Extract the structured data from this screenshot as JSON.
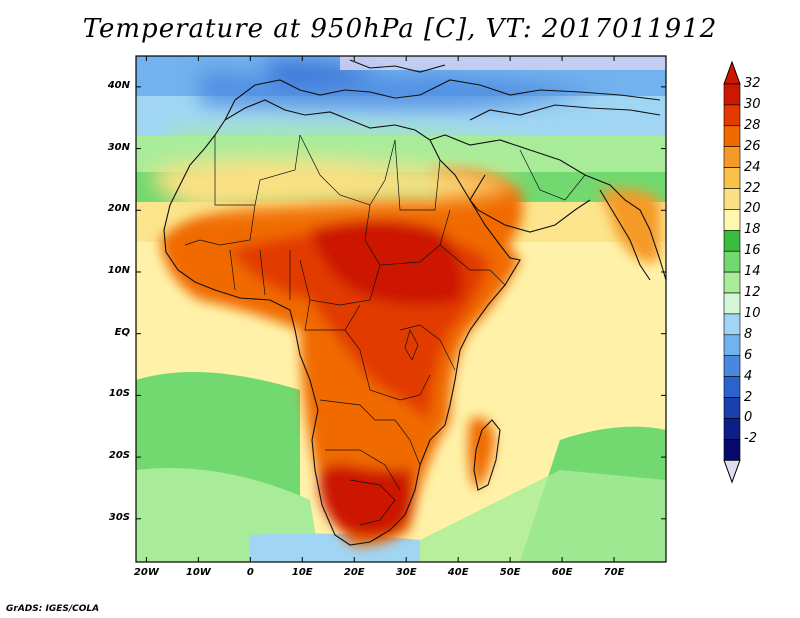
{
  "title": "Temperature at 950hPa [C], VT: 2017011912",
  "credit": "GrADS: IGES/COLA",
  "map": {
    "lon_range": [
      -22,
      80
    ],
    "lat_range": [
      -37,
      45
    ],
    "lon_ticks": [
      {
        "lon": -20,
        "label": "20W"
      },
      {
        "lon": -10,
        "label": "10W"
      },
      {
        "lon": 0,
        "label": "0"
      },
      {
        "lon": 10,
        "label": "10E"
      },
      {
        "lon": 20,
        "label": "20E"
      },
      {
        "lon": 30,
        "label": "30E"
      },
      {
        "lon": 40,
        "label": "40E"
      },
      {
        "lon": 50,
        "label": "50E"
      },
      {
        "lon": 60,
        "label": "60E"
      },
      {
        "lon": 70,
        "label": "70E"
      }
    ],
    "lat_ticks": [
      {
        "lat": 40,
        "label": "40N"
      },
      {
        "lat": 30,
        "label": "30N"
      },
      {
        "lat": 20,
        "label": "20N"
      },
      {
        "lat": 10,
        "label": "10N"
      },
      {
        "lat": 0,
        "label": "EQ"
      },
      {
        "lat": -10,
        "label": "10S"
      },
      {
        "lat": -20,
        "label": "20S"
      },
      {
        "lat": -30,
        "label": "30S"
      }
    ]
  },
  "colorbar": {
    "labels": [
      "32",
      "30",
      "28",
      "26",
      "24",
      "22",
      "20",
      "18",
      "16",
      "14",
      "12",
      "10",
      "8",
      "6",
      "4",
      "2",
      "0",
      "-2"
    ],
    "colors": [
      "#cc1800",
      "#e23a00",
      "#f06a00",
      "#f59a28",
      "#f9c24a",
      "#fbe083",
      "#fff6b0",
      "#3cbc3c",
      "#72d870",
      "#a8ec9a",
      "#d4f7d8",
      "#a0d6f4",
      "#72b2ee",
      "#4a88e0",
      "#2c62cf",
      "#1a40ae",
      "#0c1f88",
      "#050a6c"
    ],
    "top_arrow": "#cc1800",
    "bottom_arrow": "#e0dcf4"
  }
}
